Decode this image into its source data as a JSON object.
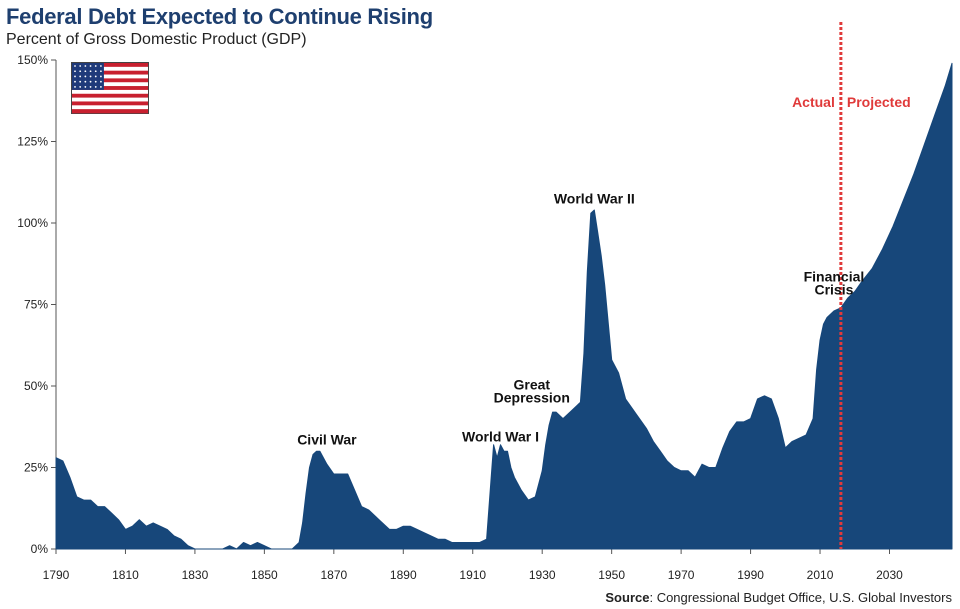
{
  "chart_data": {
    "type": "area",
    "title": "Federal Debt Expected to Continue Rising",
    "subtitle": "Percent of Gross Domestic Product (GDP)",
    "xlabel": "",
    "ylabel": "",
    "xlim": [
      1790,
      2048
    ],
    "ylim": [
      0,
      150
    ],
    "x_ticks": [
      1790,
      1810,
      1830,
      1850,
      1870,
      1890,
      1910,
      1930,
      1950,
      1970,
      1990,
      2010,
      2030
    ],
    "y_ticks": [
      0,
      25,
      50,
      75,
      100,
      125,
      150
    ],
    "y_tick_suffix": "%",
    "grid": false,
    "series": [
      {
        "color": "#17477a",
        "x": [
          1790,
          1792,
          1794,
          1796,
          1798,
          1800,
          1802,
          1804,
          1806,
          1808,
          1810,
          1812,
          1814,
          1816,
          1818,
          1820,
          1822,
          1824,
          1826,
          1828,
          1830,
          1832,
          1834,
          1836,
          1838,
          1840,
          1842,
          1844,
          1846,
          1848,
          1850,
          1852,
          1854,
          1856,
          1858,
          1860,
          1861,
          1862,
          1863,
          1864,
          1865,
          1866,
          1867,
          1868,
          1870,
          1872,
          1874,
          1876,
          1878,
          1880,
          1882,
          1884,
          1886,
          1888,
          1890,
          1892,
          1894,
          1896,
          1898,
          1900,
          1902,
          1904,
          1906,
          1908,
          1910,
          1912,
          1914,
          1916,
          1917,
          1918,
          1919,
          1920,
          1921,
          1922,
          1924,
          1926,
          1928,
          1930,
          1931,
          1932,
          1933,
          1934,
          1936,
          1938,
          1940,
          1941,
          1942,
          1943,
          1944,
          1945,
          1946,
          1947,
          1948,
          1950,
          1952,
          1954,
          1956,
          1958,
          1960,
          1962,
          1964,
          1966,
          1968,
          1970,
          1972,
          1974,
          1976,
          1978,
          1980,
          1982,
          1984,
          1986,
          1988,
          1990,
          1992,
          1994,
          1996,
          1998,
          2000,
          2002,
          2004,
          2006,
          2008,
          2009,
          2010,
          2011,
          2012,
          2014,
          2016,
          2018,
          2020,
          2022,
          2025,
          2028,
          2031,
          2034,
          2037,
          2040,
          2043,
          2046,
          2048
        ],
        "values": [
          28,
          27,
          22,
          16,
          15,
          15,
          13,
          13,
          11,
          9,
          6,
          7,
          9,
          7,
          8,
          7,
          6,
          4,
          3,
          1,
          0,
          0,
          0,
          0,
          0,
          1,
          0,
          2,
          1,
          2,
          1,
          0,
          0,
          0,
          0,
          2,
          8,
          17,
          25,
          29,
          30,
          30,
          28,
          26,
          23,
          23,
          23,
          18,
          13,
          12,
          10,
          8,
          6,
          6,
          7,
          7,
          6,
          5,
          4,
          3,
          3,
          2,
          2,
          2,
          2,
          2,
          3,
          32,
          28,
          32,
          30,
          30,
          25,
          22,
          18,
          15,
          16,
          24,
          32,
          38,
          42,
          42,
          40,
          42,
          44,
          45,
          60,
          85,
          103,
          104,
          97,
          90,
          81,
          58,
          54,
          46,
          43,
          40,
          37,
          33,
          30,
          27,
          25,
          24,
          24,
          22,
          26,
          25,
          25,
          31,
          36,
          39,
          39,
          40,
          46,
          47,
          46,
          40,
          31,
          33,
          34,
          35,
          40,
          55,
          64,
          69,
          71,
          73,
          74,
          77,
          79,
          82,
          86,
          92,
          99,
          107,
          115,
          124,
          133,
          142,
          149
        ]
      }
    ],
    "annotations": [
      {
        "text": "Civil War",
        "x": 1868,
        "y": 32
      },
      {
        "text": "World War I",
        "x": 1918,
        "y": 33
      },
      {
        "text": "Great",
        "x": 1927,
        "y": 49
      },
      {
        "text": "Depression",
        "x": 1927,
        "y": 45
      },
      {
        "text": "World War II",
        "x": 1945,
        "y": 106
      },
      {
        "text": "Financial",
        "x": 2014,
        "y": 82
      },
      {
        "text": "Crisis",
        "x": 2014,
        "y": 78
      }
    ],
    "divider": {
      "x": 2016,
      "left_label": "Actual",
      "right_label": "Projected",
      "color": "#e03a3a"
    },
    "source_label": "Source",
    "source_text": ": Congressional Budget Office, U.S. Global Investors"
  }
}
